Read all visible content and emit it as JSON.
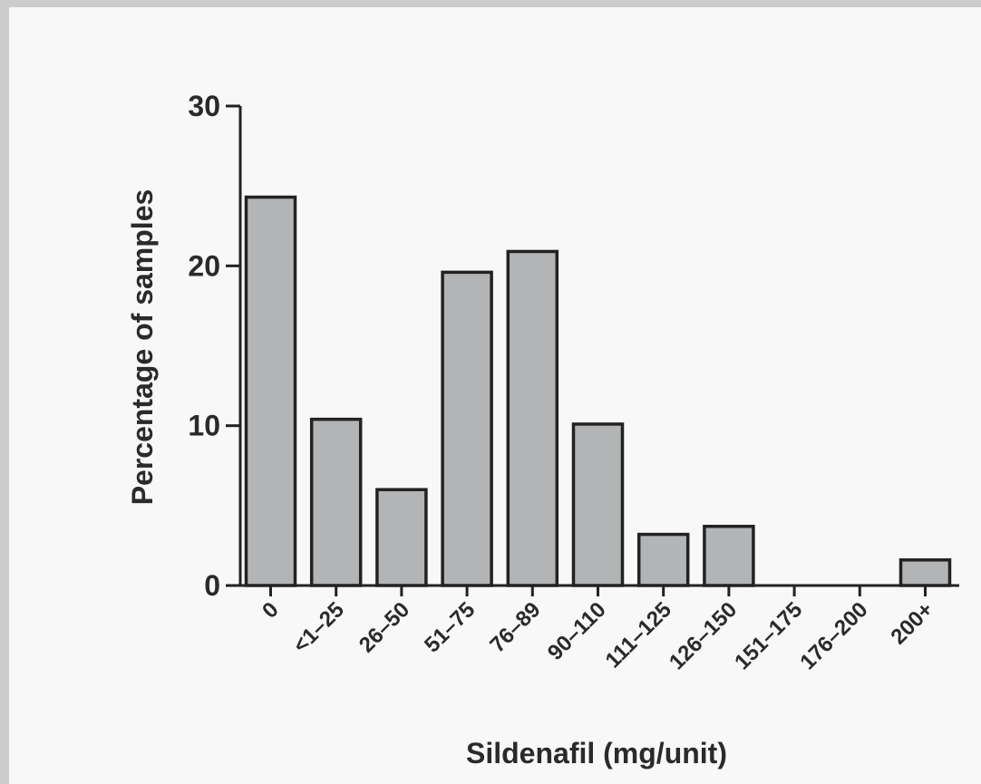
{
  "chart_data": {
    "type": "bar",
    "title": "",
    "xlabel": "Sildenafil (mg/unit)",
    "ylabel": "Percentage of samples",
    "categories": [
      "0",
      "<1–25",
      "26–50",
      "51–75",
      "76–89",
      "90–110",
      "111–125",
      "126–150",
      "151–175",
      "176–200",
      "200+"
    ],
    "values": [
      24.3,
      10.4,
      6.0,
      19.6,
      20.9,
      10.1,
      3.2,
      3.7,
      0,
      0,
      1.6
    ],
    "ylim": [
      0,
      30
    ],
    "yticks": [
      "0",
      "10",
      "20",
      "30"
    ],
    "grid": false,
    "bar_color": "#b3b4b6",
    "edge_color": "#222222"
  }
}
